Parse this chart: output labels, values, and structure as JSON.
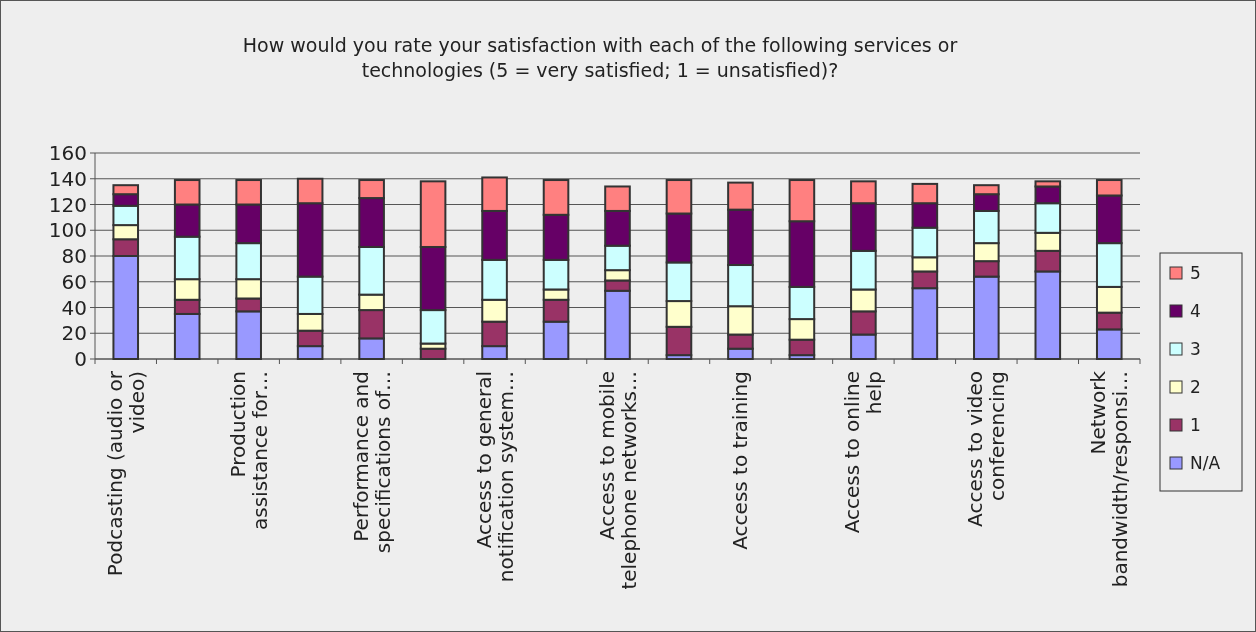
{
  "chart_data": {
    "type": "bar",
    "stacked": true,
    "title": "How would you rate your satisfaction with each of the following services or technologies (5 = very satisfied; 1 = unsatisfied)?",
    "categories": [
      "Podcasting (audio or video)",
      null,
      "Production assistance for…",
      null,
      "Performance and specifications of…",
      null,
      "Access to general notification system…",
      null,
      "Access to mobile telephone networks…",
      null,
      "Access to training",
      null,
      "Access to online help",
      null,
      "Access to video conferencing",
      null,
      "Network bandwidth/responsi…"
    ],
    "series": [
      {
        "name": "N/A",
        "color": "#9999ff",
        "values": [
          80,
          35,
          37,
          10,
          16,
          null,
          10,
          29,
          53,
          3,
          8,
          3,
          19,
          55,
          64,
          68,
          23
        ]
      },
      {
        "name": "1",
        "color": "#993366",
        "values": [
          13,
          11,
          10,
          12,
          22,
          8,
          19,
          17,
          8,
          22,
          11,
          12,
          18,
          13,
          12,
          16,
          13
        ]
      },
      {
        "name": "2",
        "color": "#ffffcc",
        "values": [
          11,
          16,
          15,
          13,
          12,
          4,
          17,
          8,
          8,
          20,
          22,
          16,
          17,
          11,
          14,
          14,
          20
        ]
      },
      {
        "name": "3",
        "color": "#ccffff",
        "values": [
          15,
          33,
          28,
          29,
          37,
          26,
          31,
          23,
          19,
          30,
          32,
          25,
          30,
          23,
          25,
          23,
          34
        ]
      },
      {
        "name": "4",
        "color": "#660066",
        "values": [
          9,
          25,
          30,
          57,
          38,
          49,
          38,
          35,
          27,
          38,
          43,
          51,
          37,
          19,
          13,
          13,
          37
        ]
      },
      {
        "name": "5",
        "color": "#ff8080",
        "values": [
          7,
          19,
          19,
          19,
          14,
          51,
          26,
          27,
          19,
          26,
          21,
          32,
          17,
          15,
          7,
          4,
          12
        ]
      }
    ],
    "ylim": [
      0,
      160
    ],
    "yticks": [
      0,
      20,
      40,
      60,
      80,
      100,
      120,
      140,
      160
    ],
    "grid": "y",
    "legend": "right"
  }
}
